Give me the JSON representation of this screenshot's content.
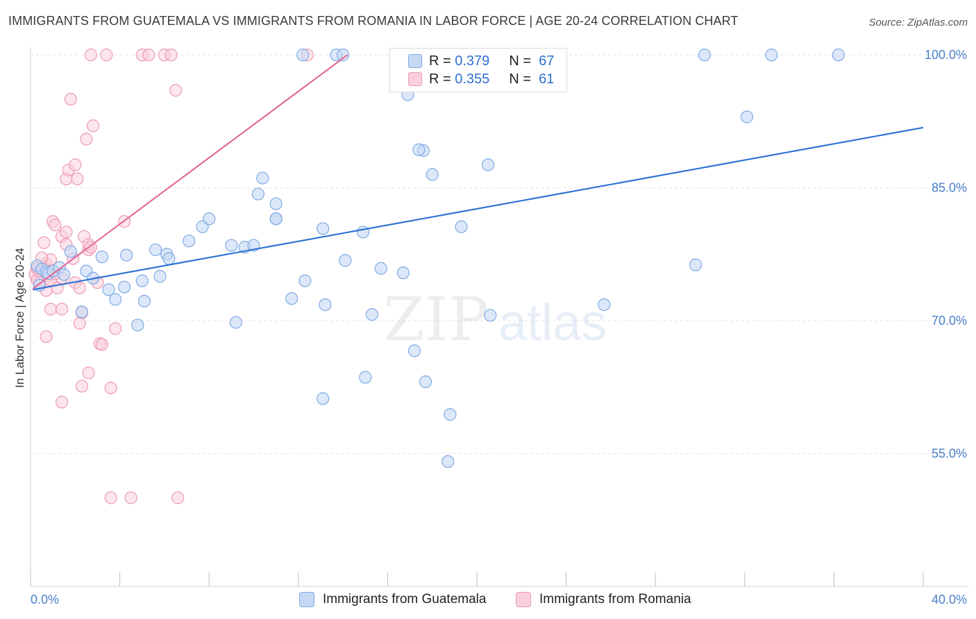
{
  "title": "IMMIGRANTS FROM GUATEMALA VS IMMIGRANTS FROM ROMANIA IN LABOR FORCE | AGE 20-24 CORRELATION CHART",
  "source": "Source: ZipAtlas.com",
  "watermark": {
    "zip": "ZIP",
    "atlas": "atlas"
  },
  "legend": {
    "rows": [
      {
        "r_label": "R =",
        "r_value": "0.379",
        "n_label": "N =",
        "n_value": "67"
      },
      {
        "r_label": "R =",
        "r_value": "0.355",
        "n_label": "N =",
        "n_value": "61"
      }
    ]
  },
  "bottom_legend": [
    "Immigrants from Guatemala",
    "Immigrants from Romania"
  ],
  "colors": {
    "guatemala_fill": "#c5d9f5",
    "guatemala_stroke": "#7fa9e3",
    "guatemala_line": "#2f72d4",
    "romania_fill": "#f9cfdc",
    "romania_stroke": "#ec9ab5",
    "romania_line": "#e26b97",
    "tick_label": "#4a7fc8",
    "grid": "#e3e3e3"
  },
  "chart_data": {
    "type": "scatter",
    "title": "IMMIGRANTS FROM GUATEMALA VS IMMIGRANTS FROM ROMANIA IN LABOR FORCE | AGE 20-24 CORRELATION CHART",
    "xlabel": "",
    "ylabel": "In Labor Force | Age 20-24",
    "xlim": [
      0,
      40
    ],
    "ylim": [
      40,
      101.5
    ],
    "x_tick_labels": [
      "0.0%",
      "40.0%"
    ],
    "y_ticks": [
      55,
      70,
      85,
      100
    ],
    "y_tick_labels": [
      "55.0%",
      "70.0%",
      "85.0%",
      "100.0%"
    ],
    "grid": true,
    "series": [
      {
        "name": "Immigrants from Guatemala",
        "R": 0.379,
        "N": 67,
        "trend": {
          "x0": 0.1,
          "y0": 73.5,
          "x1": 40,
          "y1": 91.8
        },
        "points": [
          [
            0.3,
            76.2
          ],
          [
            0.5,
            75.8
          ],
          [
            0.7,
            75.5
          ],
          [
            0.8,
            75.3
          ],
          [
            1.0,
            75.6
          ],
          [
            1.3,
            76.0
          ],
          [
            1.5,
            75.2
          ],
          [
            0.4,
            74.0
          ],
          [
            1.8,
            77.8
          ],
          [
            2.5,
            75.6
          ],
          [
            2.8,
            74.8
          ],
          [
            3.5,
            73.5
          ],
          [
            3.2,
            77.2
          ],
          [
            4.2,
            73.8
          ],
          [
            4.3,
            77.4
          ],
          [
            3.8,
            72.4
          ],
          [
            2.3,
            71.0
          ],
          [
            5.0,
            74.5
          ],
          [
            5.6,
            78.0
          ],
          [
            5.1,
            72.2
          ],
          [
            4.8,
            69.5
          ],
          [
            5.8,
            75.0
          ],
          [
            6.1,
            77.5
          ],
          [
            6.2,
            77.0
          ],
          [
            7.1,
            79.0
          ],
          [
            7.7,
            80.6
          ],
          [
            8.0,
            81.5
          ],
          [
            9.0,
            78.5
          ],
          [
            9.2,
            69.8
          ],
          [
            9.6,
            78.3
          ],
          [
            10.2,
            84.3
          ],
          [
            10.4,
            86.1
          ],
          [
            11.0,
            83.2
          ],
          [
            11.0,
            81.5
          ],
          [
            11.7,
            72.5
          ],
          [
            12.3,
            74.5
          ],
          [
            13.1,
            61.2
          ],
          [
            13.1,
            80.4
          ],
          [
            13.2,
            71.8
          ],
          [
            14.1,
            76.8
          ],
          [
            14.9,
            80.0
          ],
          [
            15.0,
            63.6
          ],
          [
            15.3,
            70.7
          ],
          [
            15.7,
            75.9
          ],
          [
            16.7,
            75.4
          ],
          [
            17.2,
            66.6
          ],
          [
            17.7,
            63.1
          ],
          [
            16.9,
            95.5
          ],
          [
            17.6,
            89.2
          ],
          [
            17.4,
            89.3
          ],
          [
            18.0,
            86.5
          ],
          [
            18.8,
            59.4
          ],
          [
            18.7,
            54.1
          ],
          [
            19.3,
            80.6
          ],
          [
            20.6,
            70.6
          ],
          [
            20.5,
            87.6
          ],
          [
            25.7,
            71.8
          ],
          [
            29.8,
            76.3
          ],
          [
            30.2,
            100.0
          ],
          [
            32.1,
            93.0
          ],
          [
            33.2,
            100.0
          ],
          [
            36.2,
            100.0
          ],
          [
            13.7,
            100.0
          ],
          [
            14.0,
            100.0
          ],
          [
            12.2,
            100.0
          ],
          [
            11.0,
            81.5
          ],
          [
            10.0,
            78.5
          ]
        ]
      },
      {
        "name": "Immigrants from Romania",
        "R": 0.355,
        "N": 61,
        "trend": {
          "x0": 0.1,
          "y0": 73.6,
          "x1": 14.2,
          "y1": 100.0
        },
        "points": [
          [
            0.2,
            75.2
          ],
          [
            0.3,
            75.9
          ],
          [
            0.5,
            75.5
          ],
          [
            0.6,
            76.1
          ],
          [
            0.4,
            74.3
          ],
          [
            0.8,
            75.0
          ],
          [
            0.9,
            74.6
          ],
          [
            0.7,
            76.4
          ],
          [
            0.9,
            76.9
          ],
          [
            0.6,
            78.8
          ],
          [
            0.7,
            73.4
          ],
          [
            0.9,
            71.3
          ],
          [
            1.2,
            73.7
          ],
          [
            1.4,
            74.8
          ],
          [
            1.0,
            81.2
          ],
          [
            1.1,
            80.8
          ],
          [
            1.4,
            79.5
          ],
          [
            1.6,
            80.0
          ],
          [
            1.6,
            78.6
          ],
          [
            1.6,
            86.0
          ],
          [
            1.7,
            87.0
          ],
          [
            1.8,
            95.0
          ],
          [
            2.0,
            87.6
          ],
          [
            2.1,
            86.0
          ],
          [
            2.0,
            74.3
          ],
          [
            2.2,
            73.7
          ],
          [
            2.2,
            69.7
          ],
          [
            2.3,
            70.9
          ],
          [
            2.4,
            79.5
          ],
          [
            2.6,
            78.0
          ],
          [
            2.6,
            78.6
          ],
          [
            2.8,
            92.0
          ],
          [
            2.5,
            90.5
          ],
          [
            2.6,
            64.1
          ],
          [
            2.3,
            62.6
          ],
          [
            0.7,
            68.2
          ],
          [
            1.4,
            71.3
          ],
          [
            1.4,
            60.8
          ],
          [
            3.0,
            74.3
          ],
          [
            3.1,
            67.4
          ],
          [
            3.2,
            67.3
          ],
          [
            3.6,
            62.4
          ],
          [
            3.8,
            69.1
          ],
          [
            4.2,
            81.2
          ],
          [
            3.6,
            50.0
          ],
          [
            4.5,
            50.0
          ],
          [
            6.6,
            50.0
          ],
          [
            2.7,
            100.0
          ],
          [
            3.4,
            100.0
          ],
          [
            5.0,
            100.0
          ],
          [
            5.3,
            100.0
          ],
          [
            6.0,
            100.0
          ],
          [
            6.3,
            100.0
          ],
          [
            6.5,
            96.0
          ],
          [
            12.4,
            100.0
          ],
          [
            0.3,
            74.6
          ],
          [
            1.1,
            75.3
          ],
          [
            1.9,
            77.0
          ],
          [
            2.7,
            78.3
          ],
          [
            0.5,
            77.1
          ],
          [
            0.4,
            75.6
          ]
        ]
      }
    ]
  }
}
